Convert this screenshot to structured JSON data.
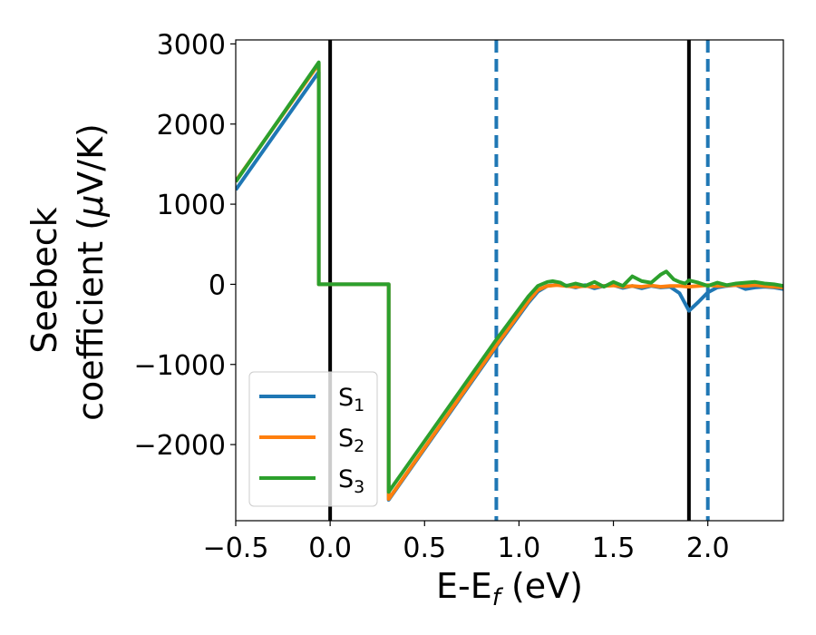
{
  "chart_data": {
    "type": "line",
    "xlabel": "E-E",
    "xlabel_sub": "f",
    "xlabel_unit": " (eV)",
    "ylabel_line1": "Seebeck",
    "ylabel_line2": "coefficient  (",
    "ylabel_mu": "μ",
    "ylabel_unit": "V/K)",
    "xlim": [
      -0.5,
      2.4
    ],
    "ylim": [
      -2950,
      3050
    ],
    "x_ticks": [
      -0.5,
      0.0,
      0.5,
      1.0,
      1.5,
      2.0
    ],
    "x_tick_labels": [
      "−0.5",
      "0.0",
      "0.5",
      "1.0",
      "1.5",
      "2.0"
    ],
    "y_ticks": [
      3000,
      2000,
      1000,
      0,
      -1000,
      -2000
    ],
    "y_tick_labels": [
      "3000",
      "2000",
      "1000",
      "0",
      "−1000",
      "−2000"
    ],
    "grid": false,
    "legend_position": "lower-left",
    "vertical_lines": [
      {
        "x": 0.0,
        "color": "#000000",
        "style": "solid"
      },
      {
        "x": 1.9,
        "color": "#000000",
        "style": "solid"
      },
      {
        "x": 0.88,
        "color": "#1f77b4",
        "style": "dashed"
      },
      {
        "x": 2.0,
        "color": "#1f77b4",
        "style": "dashed"
      }
    ],
    "series": [
      {
        "name": "S",
        "sub": "1",
        "color": "#1f77b4",
        "points": [
          [
            -0.5,
            1180
          ],
          [
            -0.06,
            2650
          ],
          [
            -0.06,
            0
          ],
          [
            0.31,
            0
          ],
          [
            0.31,
            -2690
          ],
          [
            0.88,
            -780
          ],
          [
            1.05,
            -230
          ],
          [
            1.1,
            -90
          ],
          [
            1.15,
            -20
          ],
          [
            1.2,
            -5
          ],
          [
            1.25,
            -15
          ],
          [
            1.3,
            -40
          ],
          [
            1.35,
            -10
          ],
          [
            1.4,
            -50
          ],
          [
            1.45,
            -20
          ],
          [
            1.5,
            -10
          ],
          [
            1.55,
            -45
          ],
          [
            1.6,
            -20
          ],
          [
            1.65,
            -50
          ],
          [
            1.7,
            -20
          ],
          [
            1.75,
            -40
          ],
          [
            1.8,
            -30
          ],
          [
            1.85,
            -110
          ],
          [
            1.9,
            -330
          ],
          [
            1.95,
            -220
          ],
          [
            2.0,
            -100
          ],
          [
            2.05,
            -40
          ],
          [
            2.1,
            -20
          ],
          [
            2.15,
            -10
          ],
          [
            2.2,
            -60
          ],
          [
            2.25,
            -40
          ],
          [
            2.3,
            -30
          ],
          [
            2.35,
            -40
          ],
          [
            2.4,
            -60
          ]
        ]
      },
      {
        "name": "S",
        "sub": "2",
        "color": "#ff7f0e",
        "points": [
          [
            -0.5,
            1290
          ],
          [
            -0.06,
            2750
          ],
          [
            -0.06,
            0
          ],
          [
            0.31,
            0
          ],
          [
            0.31,
            -2680
          ],
          [
            0.88,
            -760
          ],
          [
            1.05,
            -210
          ],
          [
            1.1,
            -70
          ],
          [
            1.15,
            -20
          ],
          [
            1.2,
            -10
          ],
          [
            1.25,
            -20
          ],
          [
            1.3,
            -30
          ],
          [
            1.35,
            -20
          ],
          [
            1.4,
            -30
          ],
          [
            1.45,
            -20
          ],
          [
            1.5,
            -15
          ],
          [
            1.55,
            -30
          ],
          [
            1.6,
            -20
          ],
          [
            1.65,
            -30
          ],
          [
            1.7,
            -15
          ],
          [
            1.75,
            -30
          ],
          [
            1.8,
            -20
          ],
          [
            1.85,
            -20
          ],
          [
            1.9,
            -30
          ],
          [
            1.95,
            -20
          ],
          [
            2.0,
            -10
          ],
          [
            2.05,
            -20
          ],
          [
            2.1,
            -15
          ],
          [
            2.15,
            -10
          ],
          [
            2.2,
            -20
          ],
          [
            2.25,
            -10
          ],
          [
            2.3,
            -20
          ],
          [
            2.35,
            -30
          ],
          [
            2.4,
            -40
          ]
        ]
      },
      {
        "name": "S",
        "sub": "3",
        "color": "#2ca02c",
        "points": [
          [
            -0.5,
            1280
          ],
          [
            -0.06,
            2770
          ],
          [
            -0.06,
            0
          ],
          [
            0.31,
            0
          ],
          [
            0.31,
            -2590
          ],
          [
            0.88,
            -690
          ],
          [
            1.05,
            -150
          ],
          [
            1.1,
            -20
          ],
          [
            1.15,
            30
          ],
          [
            1.18,
            40
          ],
          [
            1.22,
            20
          ],
          [
            1.25,
            -20
          ],
          [
            1.3,
            10
          ],
          [
            1.35,
            -20
          ],
          [
            1.4,
            30
          ],
          [
            1.45,
            -30
          ],
          [
            1.5,
            30
          ],
          [
            1.55,
            -20
          ],
          [
            1.6,
            100
          ],
          [
            1.65,
            40
          ],
          [
            1.7,
            20
          ],
          [
            1.75,
            120
          ],
          [
            1.78,
            160
          ],
          [
            1.82,
            60
          ],
          [
            1.85,
            30
          ],
          [
            1.88,
            10
          ],
          [
            1.9,
            50
          ],
          [
            1.95,
            20
          ],
          [
            2.0,
            -20
          ],
          [
            2.05,
            20
          ],
          [
            2.1,
            -10
          ],
          [
            2.15,
            10
          ],
          [
            2.2,
            20
          ],
          [
            2.25,
            30
          ],
          [
            2.3,
            10
          ],
          [
            2.35,
            0
          ],
          [
            2.4,
            -20
          ]
        ]
      }
    ]
  }
}
